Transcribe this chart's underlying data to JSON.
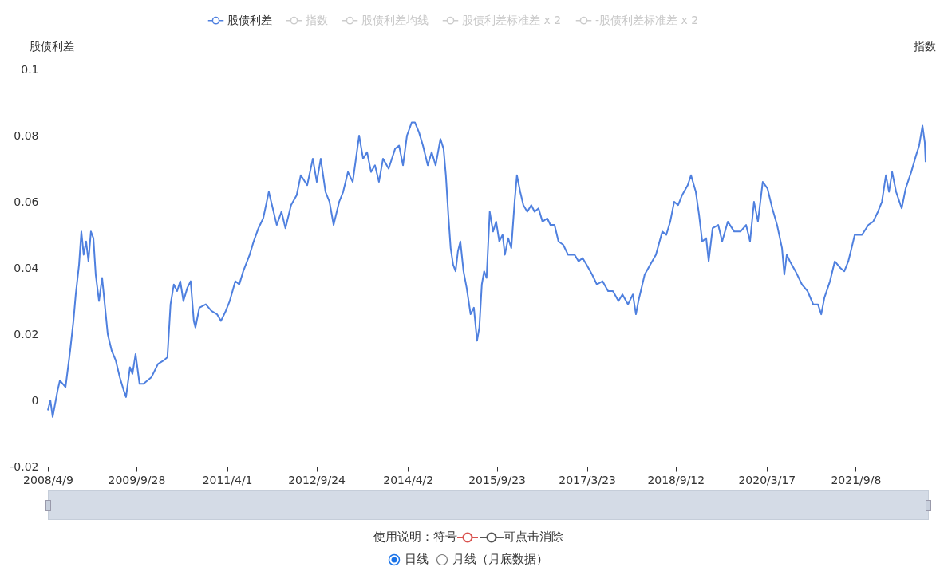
{
  "chart_data": {
    "type": "line",
    "ylabel": "股债利差",
    "y2label": "指数",
    "x": [
      "2008-04-09",
      "2008-04-24",
      "2008-05-08",
      "2008-06-07",
      "2008-06-21",
      "2008-07-25",
      "2008-08-22",
      "2008-09-11",
      "2008-09-25",
      "2008-10-15",
      "2008-10-29",
      "2008-11-12",
      "2008-11-27",
      "2008-12-11",
      "2008-12-26",
      "2009-01-10",
      "2009-01-24",
      "2009-02-13",
      "2009-03-04",
      "2009-04-07",
      "2009-05-01",
      "2009-05-26",
      "2009-06-19",
      "2009-07-13",
      "2009-07-27",
      "2009-08-20",
      "2009-09-04",
      "2009-09-23",
      "2009-10-17",
      "2009-11-10",
      "2009-12-28",
      "2010-02-06",
      "2010-03-11",
      "2010-04-04",
      "2010-04-23",
      "2010-05-13",
      "2010-06-02",
      "2010-06-21",
      "2010-07-10",
      "2010-08-03",
      "2010-08-23",
      "2010-09-11",
      "2010-09-21",
      "2010-10-15",
      "2010-11-23",
      "2010-12-27",
      "2011-01-30",
      "2011-02-23",
      "2011-03-24",
      "2011-04-17",
      "2011-05-21",
      "2011-06-14",
      "2011-07-08",
      "2011-08-16",
      "2011-09-09",
      "2011-10-08",
      "2011-11-06",
      "2011-12-10",
      "2012-01-03",
      "2012-01-27",
      "2012-02-25",
      "2012-03-20",
      "2012-04-23",
      "2012-05-27",
      "2012-06-21",
      "2012-07-30",
      "2012-09-02",
      "2012-09-26",
      "2012-10-20",
      "2012-11-18",
      "2012-12-12",
      "2013-01-06",
      "2013-02-09",
      "2013-03-05",
      "2013-04-03",
      "2013-05-02",
      "2013-06-10",
      "2013-07-04",
      "2013-07-28",
      "2013-08-21",
      "2013-09-14",
      "2013-10-08",
      "2013-11-02",
      "2013-12-06",
      "2014-01-14",
      "2014-02-07",
      "2014-03-03",
      "2014-03-27",
      "2014-04-25",
      "2014-05-14",
      "2014-06-08",
      "2014-07-02",
      "2014-07-31",
      "2014-08-24",
      "2014-09-17",
      "2014-10-16",
      "2014-11-04",
      "2014-11-18",
      "2014-12-03",
      "2014-12-17",
      "2015-01-01",
      "2015-01-16",
      "2015-01-30",
      "2015-02-14",
      "2015-03-05",
      "2015-03-24",
      "2015-04-17",
      "2015-05-07",
      "2015-05-26",
      "2015-06-09",
      "2015-06-24",
      "2015-07-08",
      "2015-07-23",
      "2015-08-11",
      "2015-08-31",
      "2015-09-19",
      "2015-10-08",
      "2015-10-28",
      "2015-11-11",
      "2015-12-01",
      "2015-12-20",
      "2016-01-09",
      "2016-01-23",
      "2016-02-12",
      "2016-03-02",
      "2016-03-26",
      "2016-04-19",
      "2016-05-09",
      "2016-06-02",
      "2016-06-26",
      "2016-07-25",
      "2016-08-13",
      "2016-09-07",
      "2016-10-01",
      "2016-10-30",
      "2016-11-28",
      "2017-01-07",
      "2017-01-31",
      "2017-02-24",
      "2017-03-20",
      "2017-04-23",
      "2017-05-22",
      "2017-06-25",
      "2017-07-29",
      "2017-08-27",
      "2017-09-30",
      "2017-10-24",
      "2017-11-27",
      "2017-12-26",
      "2018-01-14",
      "2018-01-29",
      "2018-03-08",
      "2018-04-11",
      "2018-05-15",
      "2018-06-23",
      "2018-07-17",
      "2018-08-10",
      "2018-09-03",
      "2018-09-27",
      "2018-10-21",
      "2018-11-24",
      "2018-12-14",
      "2019-01-12",
      "2019-02-01",
      "2019-02-20",
      "2019-03-16",
      "2019-03-31",
      "2019-04-24",
      "2019-05-28",
      "2019-06-21",
      "2019-07-25",
      "2019-09-02",
      "2019-10-10",
      "2019-11-13",
      "2019-12-07",
      "2019-12-31",
      "2020-01-24",
      "2020-02-22",
      "2020-03-22",
      "2020-04-20",
      "2020-05-19",
      "2020-06-18",
      "2020-07-02",
      "2020-07-17",
      "2020-08-05",
      "2020-09-08",
      "2020-10-17",
      "2020-11-20",
      "2020-12-24",
      "2021-01-22",
      "2021-02-11",
      "2021-03-02",
      "2021-04-05",
      "2021-05-04",
      "2021-06-07",
      "2021-07-01",
      "2021-07-25",
      "2021-08-09",
      "2021-09-02",
      "2021-10-16",
      "2021-11-24",
      "2021-12-23",
      "2022-01-21",
      "2022-02-14",
      "2022-03-10",
      "2022-03-29",
      "2022-04-17",
      "2022-05-11",
      "2022-06-14",
      "2022-07-08",
      "2022-08-11",
      "2022-09-09",
      "2022-09-28",
      "2022-10-18",
      "2022-11-01",
      "2022-11-06"
    ],
    "series": [
      {
        "name": "股债利差",
        "color": "#4f80df",
        "values": [
          -0.003,
          0.0,
          -0.005,
          0.003,
          0.006,
          0.004,
          0.015,
          0.024,
          0.032,
          0.041,
          0.051,
          0.044,
          0.048,
          0.042,
          0.051,
          0.049,
          0.038,
          0.03,
          0.037,
          0.02,
          0.015,
          0.012,
          0.007,
          0.003,
          0.001,
          0.01,
          0.008,
          0.014,
          0.005,
          0.005,
          0.007,
          0.011,
          0.012,
          0.013,
          0.029,
          0.035,
          0.033,
          0.036,
          0.03,
          0.034,
          0.036,
          0.024,
          0.022,
          0.028,
          0.029,
          0.027,
          0.026,
          0.024,
          0.027,
          0.03,
          0.036,
          0.035,
          0.039,
          0.044,
          0.048,
          0.052,
          0.055,
          0.063,
          0.058,
          0.053,
          0.057,
          0.052,
          0.059,
          0.062,
          0.068,
          0.065,
          0.073,
          0.066,
          0.073,
          0.063,
          0.06,
          0.053,
          0.06,
          0.063,
          0.069,
          0.066,
          0.08,
          0.073,
          0.075,
          0.069,
          0.071,
          0.066,
          0.073,
          0.07,
          0.076,
          0.077,
          0.071,
          0.08,
          0.084,
          0.084,
          0.081,
          0.077,
          0.071,
          0.075,
          0.071,
          0.079,
          0.076,
          0.068,
          0.056,
          0.046,
          0.041,
          0.039,
          0.045,
          0.048,
          0.039,
          0.034,
          0.026,
          0.028,
          0.018,
          0.022,
          0.035,
          0.039,
          0.037,
          0.057,
          0.051,
          0.054,
          0.048,
          0.05,
          0.044,
          0.049,
          0.046,
          0.06,
          0.068,
          0.063,
          0.059,
          0.057,
          0.059,
          0.057,
          0.058,
          0.054,
          0.055,
          0.053,
          0.053,
          0.048,
          0.047,
          0.044,
          0.044,
          0.042,
          0.043,
          0.041,
          0.038,
          0.035,
          0.036,
          0.033,
          0.033,
          0.03,
          0.032,
          0.029,
          0.032,
          0.026,
          0.03,
          0.038,
          0.041,
          0.044,
          0.051,
          0.05,
          0.054,
          0.06,
          0.059,
          0.062,
          0.065,
          0.068,
          0.063,
          0.056,
          0.048,
          0.049,
          0.042,
          0.052,
          0.053,
          0.048,
          0.054,
          0.051,
          0.051,
          0.053,
          0.048,
          0.06,
          0.054,
          0.066,
          0.064,
          0.058,
          0.053,
          0.046,
          0.038,
          0.044,
          0.042,
          0.039,
          0.035,
          0.033,
          0.029,
          0.029,
          0.026,
          0.031,
          0.036,
          0.042,
          0.04,
          0.039,
          0.042,
          0.045,
          0.05,
          0.05,
          0.053,
          0.054,
          0.057,
          0.06,
          0.068,
          0.063,
          0.069,
          0.063,
          0.058,
          0.064,
          0.069,
          0.074,
          0.077,
          0.083,
          0.078,
          0.072
        ]
      },
      {
        "name": "指数",
        "color": "#cccccc",
        "values": [
          null,
          null,
          null,
          null,
          null,
          null,
          null,
          null,
          null,
          null,
          null,
          null,
          null,
          null,
          null,
          null,
          null,
          null,
          null,
          null,
          null,
          null,
          null,
          null,
          null,
          null,
          null,
          null,
          null,
          null,
          null,
          null,
          null,
          null,
          null,
          null,
          null,
          null,
          null,
          null,
          null,
          null,
          null,
          null,
          null,
          null,
          null,
          null,
          null,
          null,
          null,
          null,
          null,
          null,
          null,
          null,
          null,
          null,
          null,
          null,
          null,
          null,
          null,
          null,
          null,
          null,
          null,
          null,
          null,
          null,
          null,
          null,
          null,
          null,
          null,
          null,
          null,
          null,
          null,
          null,
          null,
          null,
          null,
          null,
          null,
          null,
          null,
          null,
          null,
          null,
          null,
          null,
          null,
          null,
          null,
          null,
          null,
          null,
          null,
          null,
          null,
          null,
          null,
          null,
          null,
          null,
          null,
          null,
          null,
          null,
          null,
          null,
          null,
          null,
          null,
          null,
          null,
          null,
          null,
          null,
          null,
          null,
          null,
          null,
          null,
          null,
          null,
          null,
          null,
          null,
          null,
          null,
          null,
          null,
          null,
          null,
          null,
          null,
          null,
          null,
          null,
          null,
          null,
          null,
          null,
          null,
          null,
          null,
          null,
          null,
          null,
          null,
          null,
          null,
          null,
          null,
          null,
          null,
          null,
          null,
          null,
          null,
          null,
          null,
          null,
          null,
          null,
          null,
          null,
          null,
          null,
          null,
          null,
          null,
          null,
          null,
          null,
          null,
          null,
          null,
          null,
          null,
          null,
          null,
          null,
          null,
          null,
          null,
          null,
          null,
          null,
          null,
          null,
          null,
          null,
          null,
          null,
          null,
          null,
          null,
          null,
          null,
          null,
          null,
          null,
          null,
          null,
          null,
          null,
          null,
          null,
          null,
          null,
          null,
          null,
          null
        ]
      },
      {
        "name": "股债利差均线",
        "color": "#cccccc",
        "values": [
          null,
          null,
          null,
          null,
          null,
          null,
          null,
          null,
          null,
          null,
          null,
          null,
          null,
          null,
          null,
          null,
          null,
          null,
          null,
          null,
          null,
          null,
          null,
          null,
          null,
          null,
          null,
          null,
          null,
          null,
          null,
          null,
          null,
          null,
          null,
          null,
          null,
          null,
          null,
          null,
          null,
          null,
          null,
          null,
          null,
          null,
          null,
          null,
          null,
          null,
          null,
          null,
          null,
          null,
          null,
          null,
          null,
          null,
          null,
          null,
          null,
          null,
          null,
          null,
          null,
          null,
          null,
          null,
          null,
          null,
          null,
          null,
          null,
          null,
          null,
          null,
          null,
          null,
          null,
          null,
          null,
          null,
          null,
          null,
          null,
          null,
          null,
          null,
          null,
          null,
          null,
          null,
          null,
          null,
          null,
          null,
          null,
          null,
          null,
          null,
          null,
          null,
          null,
          null,
          null,
          null,
          null,
          null,
          null,
          null,
          null,
          null,
          null,
          null,
          null,
          null,
          null,
          null,
          null,
          null,
          null,
          null,
          null,
          null,
          null,
          null,
          null,
          null,
          null,
          null,
          null,
          null,
          null,
          null,
          null,
          null,
          null,
          null,
          null,
          null,
          null,
          null,
          null,
          null,
          null,
          null,
          null,
          null,
          null,
          null,
          null,
          null,
          null,
          null,
          null,
          null,
          null,
          null,
          null,
          null,
          null,
          null,
          null,
          null,
          null,
          null,
          null,
          null,
          null,
          null,
          null,
          null,
          null,
          null,
          null,
          null,
          null,
          null,
          null,
          null,
          null,
          null,
          null,
          null,
          null,
          null,
          null,
          null,
          null,
          null,
          null,
          null,
          null,
          null,
          null,
          null,
          null,
          null,
          null,
          null,
          null,
          null,
          null,
          null,
          null,
          null,
          null,
          null,
          null,
          null,
          null,
          null,
          null,
          null,
          null,
          null
        ]
      },
      {
        "name": "股债利差标准差 x 2",
        "color": "#cccccc",
        "values": [
          null,
          null,
          null,
          null,
          null,
          null,
          null,
          null,
          null,
          null,
          null,
          null,
          null,
          null,
          null,
          null,
          null,
          null,
          null,
          null,
          null,
          null,
          null,
          null,
          null,
          null,
          null,
          null,
          null,
          null,
          null,
          null,
          null,
          null,
          null,
          null,
          null,
          null,
          null,
          null,
          null,
          null,
          null,
          null,
          null,
          null,
          null,
          null,
          null,
          null,
          null,
          null,
          null,
          null,
          null,
          null,
          null,
          null,
          null,
          null,
          null,
          null,
          null,
          null,
          null,
          null,
          null,
          null,
          null,
          null,
          null,
          null,
          null,
          null,
          null,
          null,
          null,
          null,
          null,
          null,
          null,
          null,
          null,
          null,
          null,
          null,
          null,
          null,
          null,
          null,
          null,
          null,
          null,
          null,
          null,
          null,
          null,
          null,
          null,
          null,
          null,
          null,
          null,
          null,
          null,
          null,
          null,
          null,
          null,
          null,
          null,
          null,
          null,
          null,
          null,
          null,
          null,
          null,
          null,
          null,
          null,
          null,
          null,
          null,
          null,
          null,
          null,
          null,
          null,
          null,
          null,
          null,
          null,
          null,
          null,
          null,
          null,
          null,
          null,
          null,
          null,
          null,
          null,
          null,
          null,
          null,
          null,
          null,
          null,
          null,
          null,
          null,
          null,
          null,
          null,
          null,
          null,
          null,
          null,
          null,
          null,
          null,
          null,
          null,
          null,
          null,
          null,
          null,
          null,
          null,
          null,
          null,
          null,
          null,
          null,
          null,
          null,
          null,
          null,
          null,
          null,
          null,
          null,
          null,
          null,
          null,
          null,
          null,
          null,
          null,
          null,
          null,
          null,
          null,
          null,
          null,
          null,
          null,
          null,
          null,
          null,
          null,
          null,
          null,
          null,
          null,
          null,
          null,
          null,
          null,
          null,
          null,
          null,
          null,
          null,
          null
        ]
      },
      {
        "name": "-股债利差标准差 x 2",
        "color": "#cccccc",
        "values": [
          null,
          null,
          null,
          null,
          null,
          null,
          null,
          null,
          null,
          null,
          null,
          null,
          null,
          null,
          null,
          null,
          null,
          null,
          null,
          null,
          null,
          null,
          null,
          null,
          null,
          null,
          null,
          null,
          null,
          null,
          null,
          null,
          null,
          null,
          null,
          null,
          null,
          null,
          null,
          null,
          null,
          null,
          null,
          null,
          null,
          null,
          null,
          null,
          null,
          null,
          null,
          null,
          null,
          null,
          null,
          null,
          null,
          null,
          null,
          null,
          null,
          null,
          null,
          null,
          null,
          null,
          null,
          null,
          null,
          null,
          null,
          null,
          null,
          null,
          null,
          null,
          null,
          null,
          null,
          null,
          null,
          null,
          null,
          null,
          null,
          null,
          null,
          null,
          null,
          null,
          null,
          null,
          null,
          null,
          null,
          null,
          null,
          null,
          null,
          null,
          null,
          null,
          null,
          null,
          null,
          null,
          null,
          null,
          null,
          null,
          null,
          null,
          null,
          null,
          null,
          null,
          null,
          null,
          null,
          null,
          null,
          null,
          null,
          null,
          null,
          null,
          null,
          null,
          null,
          null,
          null,
          null,
          null,
          null,
          null,
          null,
          null,
          null,
          null,
          null,
          null,
          null,
          null,
          null,
          null,
          null,
          null,
          null,
          null,
          null,
          null,
          null,
          null,
          null,
          null,
          null,
          null,
          null,
          null,
          null,
          null,
          null,
          null,
          null,
          null,
          null,
          null,
          null,
          null,
          null,
          null,
          null,
          null,
          null,
          null,
          null,
          null,
          null,
          null,
          null,
          null,
          null,
          null,
          null,
          null,
          null,
          null,
          null,
          null,
          null,
          null,
          null,
          null,
          null,
          null,
          null,
          null,
          null,
          null,
          null,
          null,
          null,
          null,
          null,
          null,
          null,
          null,
          null,
          null,
          null,
          null,
          null,
          null,
          null,
          null,
          null
        ]
      }
    ],
    "xlim": [
      "2008-04-09",
      "2022-11-06"
    ],
    "xticks": [
      {
        "value": "2008-04-09",
        "label": "2008/4/9"
      },
      {
        "value": "2009-09-28",
        "label": "2009/9/28"
      },
      {
        "value": "2011-04-01",
        "label": "2011/4/1"
      },
      {
        "value": "2012-09-24",
        "label": "2012/9/24"
      },
      {
        "value": "2014-04-02",
        "label": "2014/4/2"
      },
      {
        "value": "2015-09-23",
        "label": "2015/9/23"
      },
      {
        "value": "2017-03-23",
        "label": "2017/3/23"
      },
      {
        "value": "2018-09-12",
        "label": "2018/9/12"
      },
      {
        "value": "2020-03-17",
        "label": "2020/3/17"
      },
      {
        "value": "2021-09-08",
        "label": "2021/9/8"
      },
      {
        "value": "2022-11-06",
        "label": null
      }
    ],
    "ylim": [
      -0.02,
      0.1
    ],
    "yticks": [
      -0.02,
      0,
      0.02,
      0.04,
      0.06,
      0.08,
      0.1
    ],
    "grid": false,
    "legend": "top",
    "annotations": [
      "使用说明：符号",
      "可点击消除",
      "日线",
      "月线（月底数据）"
    ]
  }
}
